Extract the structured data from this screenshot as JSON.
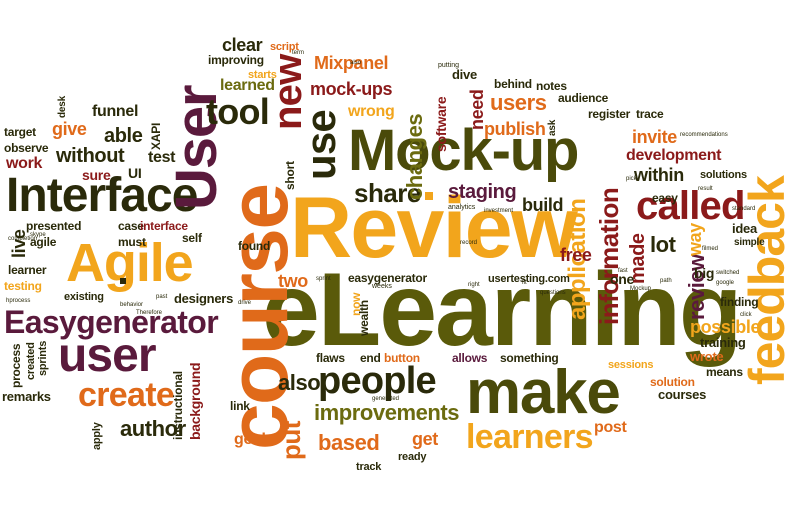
{
  "colors": {
    "dark_red": "#8b1a1a",
    "orange": "#e8791a",
    "amber": "#f2a51c",
    "olive": "#6b6b0f",
    "plum": "#5a1a3c",
    "dark": "#2a2a0a",
    "green": "#4a4a0a"
  },
  "words": {
    "elearning": "eLearning",
    "review": "Review",
    "course": "course",
    "mockup": "Mock-up",
    "interface": "Interface",
    "user_big": "User",
    "agile": "Agile",
    "make": "make",
    "feedback": "feedback",
    "people": "people",
    "easygenerator": "Easygenerator",
    "called": "called",
    "use": "use",
    "new": "new",
    "tool": "tool",
    "user_small": "user",
    "create": "create",
    "learners": "learners",
    "information": "information",
    "application": "application",
    "share": "share",
    "improvements": "improvements",
    "changes": "changes",
    "also": "also",
    "put": "put",
    "based": "based",
    "author": "author",
    "users": "users",
    "publish": "publish",
    "mockups": "mock-ups",
    "mixpanel": "Mixpanel",
    "clear": "clear",
    "learned": "learned",
    "need": "need",
    "software": "software",
    "development": "development",
    "within": "within",
    "invite": "invite",
    "review_small": "review",
    "lot": "lot",
    "made": "made",
    "staging": "staging",
    "build": "build",
    "free": "free",
    "able": "able",
    "without": "without",
    "test": "test",
    "work": "work",
    "give": "give",
    "funnel": "funnel",
    "live": "live",
    "two": "two",
    "possible": "possible",
    "get": "get",
    "goal": "goal",
    "background": "background",
    "instructional": "instructional",
    "process": "process",
    "remarks": "remarks",
    "designers": "designers",
    "easygenerator_small": "easygenerator",
    "usertesting": "usertesting.com",
    "flaws": "flaws",
    "end": "end",
    "button": "button",
    "allows": "allows",
    "something": "something",
    "training": "training",
    "wrote": "wrote",
    "solution": "solution",
    "courses": "courses",
    "post": "post",
    "means": "means",
    "wrong": "wrong",
    "dive": "dive",
    "behind": "behind",
    "notes": "notes",
    "audience": "audience",
    "register": "register",
    "trace": "trace",
    "short": "short",
    "ui": "UI",
    "sure": "sure",
    "presented": "presented",
    "case": "case",
    "interface_small": "interface",
    "must": "must",
    "self": "self",
    "found": "found",
    "learner": "learner",
    "testing": "testing",
    "existing": "existing",
    "sprints": "sprints",
    "created": "created",
    "apply": "apply",
    "link": "link",
    "track": "track",
    "ready": "ready",
    "improving": "improving",
    "starts": "starts",
    "script": "script",
    "desk": "desk",
    "target": "target",
    "observe": "observe",
    "agile_small": "agile",
    "easy": "easy",
    "way": "way",
    "idea": "idea",
    "big": "big",
    "finding": "finding",
    "one": "one",
    "wealth": "wealth",
    "now": "now",
    "xapi": "XAPI",
    "solutions": "solutions",
    "ask": "ask",
    "sessions": "sessions",
    "simple": "simple",
    "weeks": "weeks",
    "putting": "putting",
    "recommendations": "recommendations",
    "analytics": "analytics",
    "investment": "investment",
    "record": "record",
    "pick": "pick",
    "result": "result",
    "standard": "standard",
    "switched": "switched",
    "google": "google",
    "skype": "skype",
    "completion": "completion",
    "behavior": "behavior",
    "therefore": "Therefore",
    "hprocess": "hprocess",
    "generated": "generated",
    "questions": "questions",
    "right": "right",
    "fast": "fast",
    "path": "path",
    "mockup_small": "Mockup",
    "filmed": "filmed",
    "click": "click",
    "drive": "drive",
    "past": "past",
    "term": "term",
    "also_small": "also",
    "sprint": "sprint",
    "fit": "fit"
  }
}
